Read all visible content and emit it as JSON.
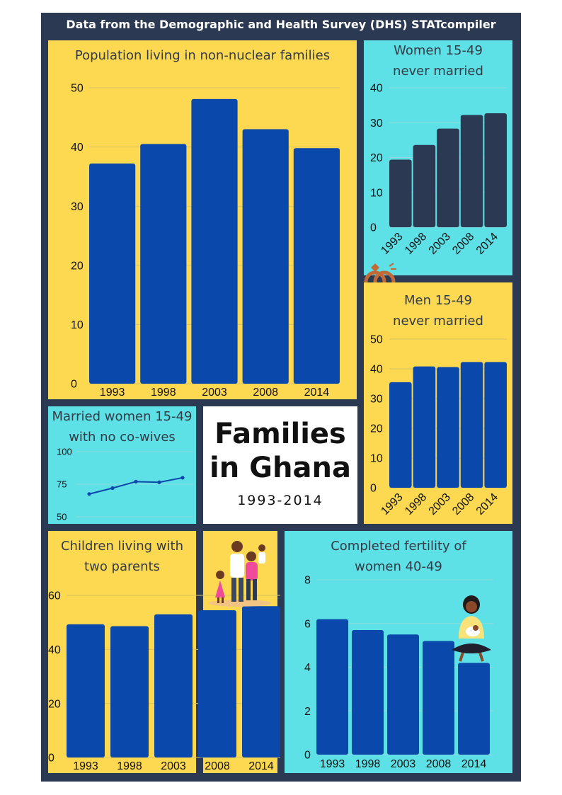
{
  "header": {
    "source_text": "Data from the Demographic and Health Survey (DHS) STATcompiler"
  },
  "center": {
    "title_line1": "Families",
    "title_line2": "in Ghana",
    "years": "1993-2014"
  },
  "colors": {
    "frame": "#2b3a52",
    "yellow": "#fdd851",
    "cyan": "#5ee1e6",
    "bar_blue": "#0a48ab",
    "bar_navy": "#2b3a52"
  },
  "chart_data": [
    {
      "id": "non_nuclear",
      "type": "bar",
      "title": "Population living in non-nuclear families",
      "categories": [
        "1993",
        "1998",
        "2003",
        "2008",
        "2014"
      ],
      "values": [
        37.2,
        40.5,
        48.1,
        43.0,
        39.8
      ],
      "ylim": [
        0,
        50
      ],
      "yticks": [
        0,
        10,
        20,
        30,
        40,
        50
      ],
      "grid": true
    },
    {
      "id": "women_never_married",
      "type": "bar",
      "title": "Women 15-49 never married",
      "categories": [
        "1993",
        "1998",
        "2003",
        "2008",
        "2014"
      ],
      "values": [
        19.4,
        23.6,
        28.3,
        32.2,
        32.7
      ],
      "ylim": [
        0,
        40
      ],
      "yticks": [
        0,
        10,
        20,
        30,
        40
      ],
      "grid": true
    },
    {
      "id": "men_never_married",
      "type": "bar",
      "title": "Men 15-49 never married",
      "categories": [
        "1993",
        "1998",
        "2003",
        "2008",
        "2014"
      ],
      "values": [
        35.5,
        40.8,
        40.6,
        42.3,
        42.3
      ],
      "ylim": [
        0,
        50
      ],
      "yticks": [
        0,
        10,
        20,
        30,
        40,
        50
      ],
      "grid": true
    },
    {
      "id": "no_cowives",
      "type": "line",
      "title": "Married women 15-49 with no co-wives",
      "categories": [
        "1993",
        "1998",
        "2003",
        "2008",
        "2014"
      ],
      "values": [
        67.5,
        72.0,
        77.0,
        76.5,
        80.0
      ],
      "ylim": [
        50,
        100
      ],
      "yticks": [
        50,
        75,
        100
      ],
      "grid": true
    },
    {
      "id": "two_parents",
      "type": "bar",
      "title": "Children living with two parents",
      "categories": [
        "1993",
        "1998",
        "2003",
        "2008",
        "2014"
      ],
      "values": [
        49.3,
        48.6,
        53.0,
        54.5,
        56.0
      ],
      "ylim": [
        0,
        60
      ],
      "yticks": [
        0,
        20,
        40,
        60
      ],
      "grid": true
    },
    {
      "id": "fertility",
      "type": "bar",
      "title": "Completed fertility of women 40-49",
      "categories": [
        "1993",
        "1998",
        "2003",
        "2008",
        "2014"
      ],
      "values": [
        6.2,
        5.7,
        5.5,
        5.2,
        4.2
      ],
      "ylim": [
        0,
        8
      ],
      "yticks": [
        0,
        2,
        4,
        6,
        8
      ],
      "grid": true
    }
  ]
}
